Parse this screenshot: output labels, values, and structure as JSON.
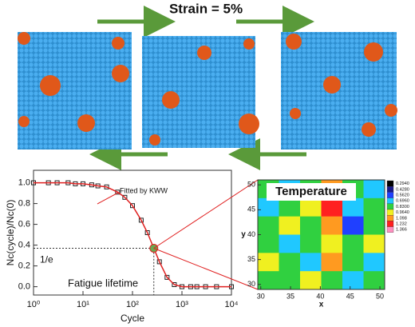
{
  "figure": {
    "title": "Strain = 5%"
  },
  "chart_data": [
    {
      "type": "line",
      "x_label": "Cycle",
      "y_label": "Nc(cycle)/Nc(0)",
      "log_x": true,
      "xlim": [
        1,
        10000
      ],
      "xticks": [
        {
          "value": 1,
          "label": "10⁰"
        },
        {
          "value": 10,
          "label": "10¹"
        },
        {
          "value": 100,
          "label": "10²"
        },
        {
          "value": 1000,
          "label": "10³"
        },
        {
          "value": 10000,
          "label": "10⁴"
        }
      ],
      "ylim": [
        -0.08,
        1.12
      ],
      "yticks": [
        {
          "value": 0,
          "label": "0.0"
        },
        {
          "value": 0.2,
          "label": "0.2"
        },
        {
          "value": 0.4,
          "label": "0.4"
        },
        {
          "value": 0.6,
          "label": "0.6"
        },
        {
          "value": 0.8,
          "label": "0.8"
        },
        {
          "value": 1,
          "label": "1.0"
        }
      ],
      "x": [
        1,
        2,
        3,
        5,
        7,
        10,
        15,
        20,
        30,
        50,
        70,
        100,
        150,
        200,
        270,
        350,
        500,
        700,
        1000,
        1500,
        2000,
        3000,
        5000,
        10000
      ],
      "series": [
        {
          "mode": "markers",
          "color": "#222222",
          "values": [
            1.0,
            1.0,
            1.0,
            1.0,
            0.99,
            0.99,
            0.98,
            0.97,
            0.96,
            0.91,
            0.86,
            0.78,
            0.64,
            0.52,
            0.37,
            0.24,
            0.09,
            0.02,
            0.0,
            0.0,
            0.0,
            0.0,
            0.0,
            0.0
          ]
        },
        {
          "mode": "line",
          "name": "Fitted by KWW",
          "color": "#e02020",
          "values": [
            1.0,
            1.0,
            1.0,
            1.0,
            0.99,
            0.99,
            0.98,
            0.97,
            0.96,
            0.91,
            0.86,
            0.78,
            0.64,
            0.52,
            0.37,
            0.24,
            0.09,
            0.02,
            0.0,
            0.0,
            0.0,
            0.0,
            0.0,
            0.0
          ]
        }
      ],
      "highlight": {
        "x": 270,
        "y": 0.37,
        "color": "#6aa84f"
      },
      "annotations": [
        "1/e",
        "Fatigue lifetime"
      ]
    },
    {
      "type": "contour",
      "title": "Temperature",
      "x_label": "x",
      "y_label": "y",
      "xlim": [
        29.5,
        50.8
      ],
      "xticks": [
        30,
        35,
        40,
        45,
        50
      ],
      "ylim": [
        29,
        51
      ],
      "yticks": [
        30,
        35,
        40,
        45,
        50
      ],
      "levels": [
        {
          "value": 0.294,
          "label": "0.2940"
        },
        {
          "value": 0.428,
          "label": "0.4280"
        },
        {
          "value": 0.562,
          "label": "0.5620"
        },
        {
          "value": 0.696,
          "label": "0.6960"
        },
        {
          "value": 0.83,
          "label": "0.8300"
        },
        {
          "value": 0.964,
          "label": "0.9640"
        },
        1.098,
        1.232,
        1.366
      ],
      "colors": [
        "#000000",
        "#1a1a8a",
        "#2040ff",
        "#20c8ff",
        "#30d040",
        "#f0f020",
        "#ff9a20",
        "#ff2020",
        "#ff90c0"
      ],
      "z": [
        [
          0.83,
          0.7,
          0.83,
          1.1,
          0.83,
          0.7
        ],
        [
          0.7,
          0.83,
          0.96,
          1.23,
          0.7,
          0.83
        ],
        [
          0.83,
          0.96,
          0.83,
          1.1,
          0.56,
          0.83
        ],
        [
          0.83,
          0.7,
          0.83,
          0.96,
          0.83,
          0.96
        ],
        [
          0.96,
          0.83,
          0.7,
          1.1,
          0.83,
          0.7
        ],
        [
          0.83,
          0.83,
          0.96,
          0.83,
          0.7,
          0.83
        ]
      ]
    }
  ]
}
